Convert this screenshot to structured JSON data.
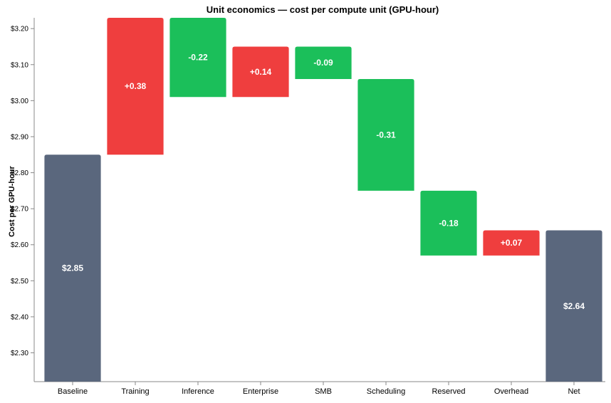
{
  "chart_data": {
    "type": "bar",
    "subtype": "waterfall",
    "title": "Unit economics — cost per compute unit (GPU-hour)",
    "xlabel": "",
    "ylabel": "Cost per GPU-hour",
    "ylim": [
      2.22,
      3.23
    ],
    "yticks": [
      "$2.30",
      "$2.40",
      "$2.50",
      "$2.60",
      "$2.70",
      "$2.80",
      "$2.90",
      "$3.00",
      "$3.10",
      "$3.20"
    ],
    "ytick_values": [
      2.3,
      2.4,
      2.5,
      2.6,
      2.7,
      2.8,
      2.9,
      3.0,
      3.1,
      3.2
    ],
    "categories": [
      "Baseline",
      "Training",
      "Inference",
      "Enterprise",
      "SMB",
      "Scheduling",
      "Reserved",
      "Overhead",
      "Net"
    ],
    "bars": [
      {
        "category": "Baseline",
        "kind": "total",
        "start": 2.22,
        "end": 2.85,
        "label": "$2.85"
      },
      {
        "category": "Training",
        "kind": "increase",
        "start": 2.85,
        "end": 3.23,
        "label": "+0.38"
      },
      {
        "category": "Inference",
        "kind": "decrease",
        "start": 3.23,
        "end": 3.01,
        "label": "-0.22"
      },
      {
        "category": "Enterprise",
        "kind": "increase",
        "start": 3.01,
        "end": 3.15,
        "label": "+0.14"
      },
      {
        "category": "SMB",
        "kind": "decrease",
        "start": 3.15,
        "end": 3.06,
        "label": "-0.09"
      },
      {
        "category": "Scheduling",
        "kind": "decrease",
        "start": 3.06,
        "end": 2.75,
        "label": "-0.31"
      },
      {
        "category": "Reserved",
        "kind": "decrease",
        "start": 2.75,
        "end": 2.57,
        "label": "-0.18"
      },
      {
        "category": "Overhead",
        "kind": "increase",
        "start": 2.57,
        "end": 2.64,
        "label": "+0.07"
      },
      {
        "category": "Net",
        "kind": "total",
        "start": 2.22,
        "end": 2.64,
        "label": "$2.64"
      }
    ],
    "colors": {
      "total": "#5a677d",
      "increase": "#ef3e3e",
      "decrease": "#1bbf5a"
    },
    "grid": false,
    "legend": "none"
  }
}
